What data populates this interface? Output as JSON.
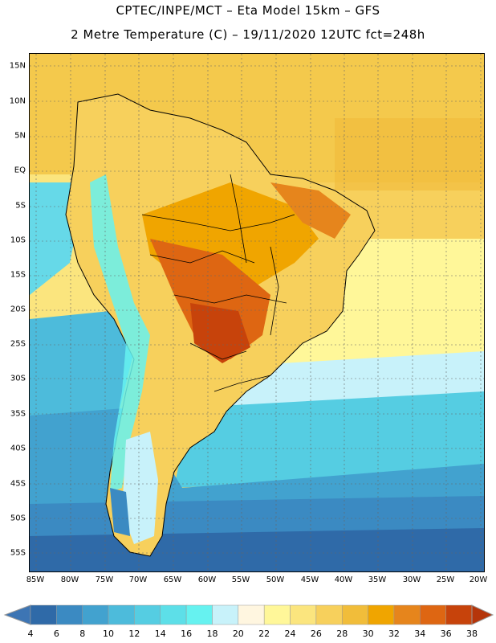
{
  "title": {
    "line1": "CPTEC/INPE/MCT –  Eta Model 15km – GFS",
    "line2": "2 Metre Temperature (C) – 19/11/2020 12UTC fct=248h"
  },
  "map": {
    "lat_labels": [
      "15N",
      "10N",
      "5N",
      "EQ",
      "5S",
      "10S",
      "15S",
      "20S",
      "25S",
      "30S",
      "35S",
      "40S",
      "45S",
      "50S",
      "55S"
    ],
    "lon_labels": [
      "85W",
      "80W",
      "75W",
      "70W",
      "65W",
      "60W",
      "55W",
      "50W",
      "45W",
      "40W",
      "35W",
      "30W",
      "25W",
      "20W"
    ]
  },
  "legend": {
    "levels": [
      "4",
      "6",
      "8",
      "10",
      "12",
      "14",
      "16",
      "18",
      "20",
      "22",
      "24",
      "26",
      "28",
      "30",
      "32",
      "34",
      "36",
      "38"
    ],
    "colors": [
      "#3d75b4",
      "#2f6aa8",
      "#3b8ac2",
      "#42a2cf",
      "#4dbbdb",
      "#55cde2",
      "#5ddfe8",
      "#66f2f0",
      "#c8f2fa",
      "#fff6e0",
      "#fff799",
      "#fbe57e",
      "#f7d05c",
      "#f1bd3a",
      "#f0a500",
      "#e6851c",
      "#de6612",
      "#c7430b",
      "#b5350a"
    ]
  }
}
